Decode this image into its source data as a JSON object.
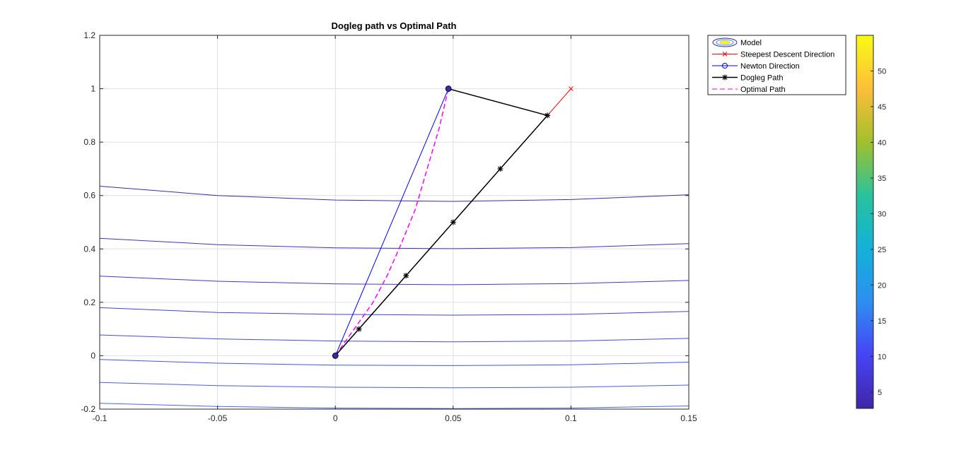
{
  "chart_data": {
    "type": "line",
    "title": "Dogleg path vs Optimal Path",
    "xlabel": "",
    "ylabel": "",
    "xlim": [
      -0.1,
      0.15
    ],
    "ylim": [
      -0.2,
      1.2
    ],
    "xticks": [
      -0.1,
      -0.05,
      0,
      0.05,
      0.1,
      0.15
    ],
    "xtick_labels": [
      "-0.1",
      "-0.05",
      "0",
      "0.05",
      "0.1",
      "0.15"
    ],
    "yticks": [
      -0.2,
      0,
      0.2,
      0.4,
      0.6,
      0.8,
      1,
      1.2
    ],
    "ytick_labels": [
      "-0.2",
      "0",
      "0.2",
      "0.4",
      "0.6",
      "0.8",
      "1",
      "1.2"
    ],
    "grid": true,
    "legend_position": "outside-top-right",
    "legend": [
      {
        "label": "Model",
        "key": "model"
      },
      {
        "label": "Steepest Descent Direction",
        "key": "steepest"
      },
      {
        "label": "Newton Direction",
        "key": "newton"
      },
      {
        "label": "Dogleg Path",
        "key": "dogleg"
      },
      {
        "label": "Optimal Path",
        "key": "optimal"
      }
    ],
    "contours": [
      {
        "level": 3,
        "color": "#3d2ba8",
        "x": [
          -0.1,
          -0.05,
          0,
          0.05,
          0.1,
          0.15
        ],
        "y": [
          0.635,
          0.6,
          0.583,
          0.578,
          0.585,
          0.603
        ]
      },
      {
        "level": 5,
        "color": "#4231c0",
        "x": [
          -0.1,
          -0.05,
          0,
          0.05,
          0.1,
          0.15
        ],
        "y": [
          0.44,
          0.416,
          0.404,
          0.401,
          0.405,
          0.42
        ]
      },
      {
        "level": 7,
        "color": "#4637cf",
        "x": [
          -0.1,
          -0.05,
          0,
          0.05,
          0.1,
          0.15
        ],
        "y": [
          0.298,
          0.279,
          0.269,
          0.266,
          0.27,
          0.282
        ]
      },
      {
        "level": 9,
        "color": "#4640d9",
        "x": [
          -0.1,
          -0.05,
          0,
          0.05,
          0.1,
          0.15
        ],
        "y": [
          0.18,
          0.162,
          0.155,
          0.152,
          0.155,
          0.166
        ]
      },
      {
        "level": 11,
        "color": "#4649e2",
        "x": [
          -0.1,
          -0.05,
          0,
          0.05,
          0.1,
          0.15
        ],
        "y": [
          0.078,
          0.063,
          0.055,
          0.052,
          0.055,
          0.065
        ]
      },
      {
        "level": 13,
        "color": "#4653ea",
        "x": [
          -0.1,
          -0.05,
          0,
          0.05,
          0.1,
          0.15
        ],
        "y": [
          -0.014,
          -0.028,
          -0.035,
          -0.037,
          -0.034,
          -0.024
        ]
      },
      {
        "level": 15,
        "color": "#465df0",
        "x": [
          -0.1,
          -0.05,
          0,
          0.05,
          0.1,
          0.15
        ],
        "y": [
          -0.1,
          -0.112,
          -0.118,
          -0.12,
          -0.118,
          -0.11
        ]
      },
      {
        "level": 17,
        "color": "#4667f5",
        "x": [
          -0.1,
          -0.05,
          0,
          0.05,
          0.1,
          0.15
        ],
        "y": [
          -0.178,
          -0.19,
          -0.196,
          -0.198,
          -0.196,
          -0.188
        ]
      }
    ],
    "series": [
      {
        "name": "Steepest Descent Direction",
        "key": "steepest",
        "color": "#ff0000",
        "marker": "x",
        "x": [
          0,
          0.1
        ],
        "y": [
          0,
          1
        ]
      },
      {
        "name": "Newton Direction",
        "key": "newton",
        "color": "#0000ff",
        "marker": "o",
        "x": [
          0,
          0.048
        ],
        "y": [
          0,
          1
        ]
      },
      {
        "name": "Dogleg Path",
        "key": "dogleg",
        "color": "#000000",
        "marker": "*",
        "x": [
          0,
          0.01,
          0.03,
          0.05,
          0.07,
          0.09,
          0.048
        ],
        "y": [
          0,
          0.1,
          0.3,
          0.5,
          0.7,
          0.9,
          1
        ]
      },
      {
        "name": "Optimal Path",
        "key": "optimal",
        "color": "#ff00ff",
        "dash": true,
        "x": [
          0,
          0.008,
          0.016,
          0.022,
          0.028,
          0.034,
          0.039,
          0.044,
          0.048
        ],
        "y": [
          0,
          0.1,
          0.2,
          0.3,
          0.42,
          0.55,
          0.7,
          0.85,
          1
        ]
      }
    ],
    "colorbar": {
      "min": 2.7,
      "max": 55,
      "ticks": [
        5,
        10,
        15,
        20,
        25,
        30,
        35,
        40,
        45,
        50
      ],
      "tick_labels": [
        "5",
        "10",
        "15",
        "20",
        "25",
        "30",
        "35",
        "40",
        "45",
        "50"
      ],
      "colormap": [
        "#3e26a8",
        "#4743f6",
        "#2d8ff1",
        "#14b1d8",
        "#29c29c",
        "#a2c02c",
        "#fcbe3a",
        "#f9fb15"
      ]
    }
  }
}
